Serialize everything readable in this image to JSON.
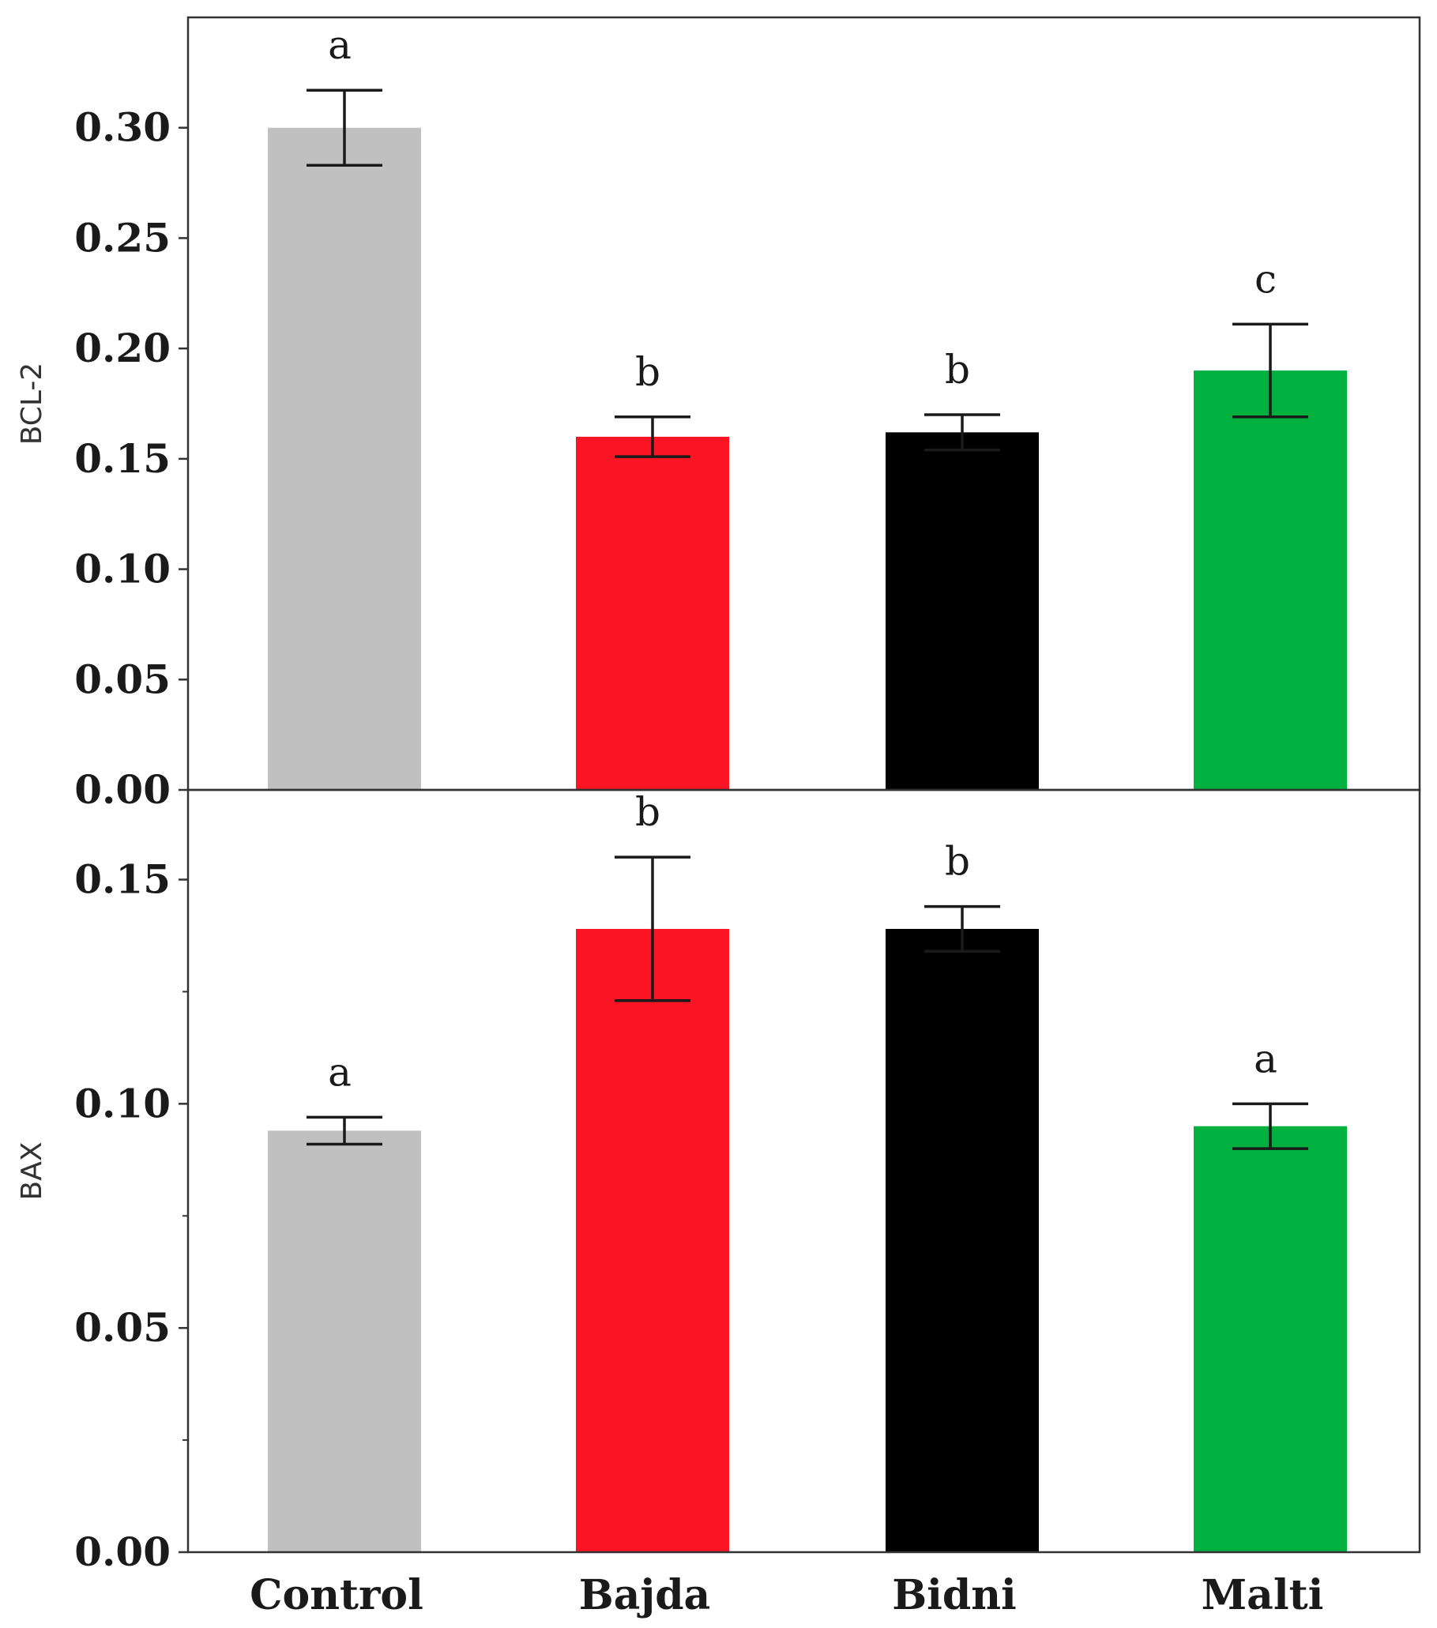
{
  "chart_data": [
    {
      "type": "bar",
      "panel": "top",
      "title": "",
      "xlabel": "",
      "ylabel": "BCL-2",
      "categories": [
        "Control",
        "Bajda",
        "Bidni",
        "Malti"
      ],
      "values": [
        0.3,
        0.16,
        0.162,
        0.19
      ],
      "errors": [
        0.017,
        0.009,
        0.008,
        0.021
      ],
      "significance": [
        "a",
        "b",
        "b",
        "c"
      ],
      "colors": [
        "#c0c0c0",
        "#fb1423",
        "#000000",
        "#00b140"
      ],
      "ylim": [
        0,
        0.35
      ],
      "yticks": [
        "0.00",
        "0.05",
        "0.10",
        "0.15",
        "0.20",
        "0.25",
        "0.30"
      ],
      "show_category_labels": false
    },
    {
      "type": "bar",
      "panel": "bottom",
      "title": "",
      "xlabel": "",
      "ylabel": "BAX",
      "categories": [
        "Control",
        "Bajda",
        "Bidni",
        "Malti"
      ],
      "values": [
        0.094,
        0.139,
        0.139,
        0.095
      ],
      "errors": [
        0.003,
        0.016,
        0.005,
        0.005
      ],
      "significance": [
        "a",
        "b",
        "b",
        "a"
      ],
      "colors": [
        "#c0c0c0",
        "#fb1423",
        "#000000",
        "#00b140"
      ],
      "ylim": [
        0,
        0.17
      ],
      "yticks": [
        "0.00",
        "0.05",
        "0.10",
        "0.15"
      ],
      "minor_tick_step": 0.025,
      "show_category_labels": true
    }
  ]
}
